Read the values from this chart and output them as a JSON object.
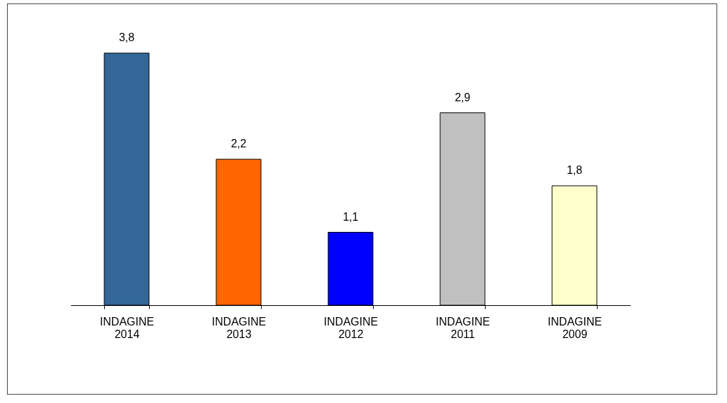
{
  "chart_data": {
    "type": "bar",
    "categories": [
      "INDAGINE 2014",
      "INDAGINE 2013",
      "INDAGINE 2012",
      "INDAGINE 2011",
      "INDAGINE 2009"
    ],
    "values": [
      3.8,
      2.2,
      1.1,
      2.9,
      1.8
    ],
    "colors": [
      "#336699",
      "#ff6600",
      "#0000ff",
      "#c0c0c0",
      "#ffffcc"
    ],
    "value_labels": [
      "3,8",
      "2,2",
      "1,1",
      "2,9",
      "1,8"
    ],
    "grid": false,
    "legend": false
  }
}
